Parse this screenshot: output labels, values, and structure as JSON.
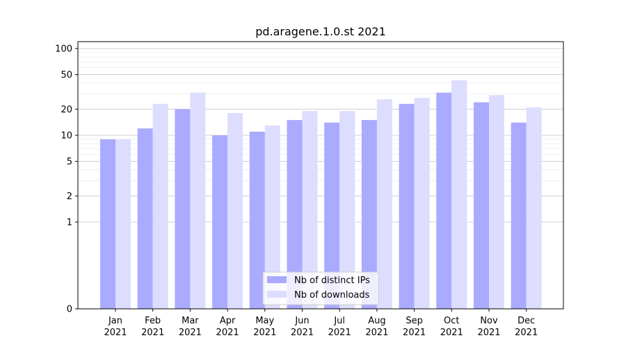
{
  "chart_data": {
    "type": "bar",
    "title": "pd.aragene.1.0.st 2021",
    "xlabel": "",
    "ylabel": "",
    "y_scale": "symlog",
    "ylim": [
      0,
      120
    ],
    "y_ticks": [
      0,
      1,
      2,
      5,
      10,
      20,
      50,
      100
    ],
    "grid": "horizontal",
    "legend": "bottom-center",
    "categories": [
      {
        "month": "Jan",
        "year": "2021"
      },
      {
        "month": "Feb",
        "year": "2021"
      },
      {
        "month": "Mar",
        "year": "2021"
      },
      {
        "month": "Apr",
        "year": "2021"
      },
      {
        "month": "May",
        "year": "2021"
      },
      {
        "month": "Jun",
        "year": "2021"
      },
      {
        "month": "Jul",
        "year": "2021"
      },
      {
        "month": "Aug",
        "year": "2021"
      },
      {
        "month": "Sep",
        "year": "2021"
      },
      {
        "month": "Oct",
        "year": "2021"
      },
      {
        "month": "Nov",
        "year": "2021"
      },
      {
        "month": "Dec",
        "year": "2021"
      }
    ],
    "series": [
      {
        "name": "Nb of distinct IPs",
        "color": "#aaaaff",
        "values": [
          9,
          12,
          20,
          10,
          11,
          15,
          14,
          15,
          23,
          31,
          24,
          14
        ]
      },
      {
        "name": "Nb of downloads",
        "color": "#ddddff",
        "values": [
          9,
          23,
          31,
          18,
          13,
          19,
          19,
          26,
          27,
          43,
          29,
          21
        ]
      }
    ]
  }
}
